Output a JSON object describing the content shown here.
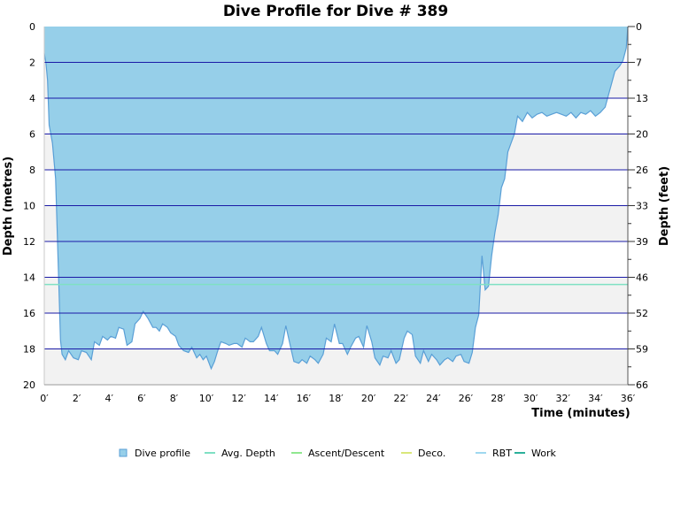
{
  "chart_data": {
    "type": "area",
    "title": "Dive Profile for Dive # 389",
    "xlabel": "Time (minutes)",
    "ylabel": "Depth (metres)",
    "ylabel_right": "Depth (feet)",
    "xlim": [
      0,
      36
    ],
    "ylim": [
      0,
      20
    ],
    "y_inverted": true,
    "x_ticks": [
      "0′",
      "2′",
      "4′",
      "6′",
      "8′",
      "10′",
      "12′",
      "14′",
      "16′",
      "18′",
      "20′",
      "22′",
      "24′",
      "26′",
      "28′",
      "30′",
      "32′",
      "34′",
      "36′"
    ],
    "y_ticks": [
      "0",
      "2",
      "4",
      "6",
      "8",
      "10",
      "12",
      "14",
      "16",
      "18",
      "20"
    ],
    "y_right_ticks": [
      "0",
      "7",
      "13",
      "20",
      "26",
      "33",
      "39",
      "46",
      "52",
      "59",
      "66"
    ],
    "grid": "horizontal",
    "legend_placement": "bottom",
    "colors": {
      "area_fill": "#96cfe9",
      "area_stroke": "#5a9fd6",
      "grid": "#1a1aa6",
      "band": "#f2f2f2",
      "avg_depth": "#7fe0c3"
    },
    "avg_depth": 14.4,
    "series": [
      {
        "name": "Dive profile",
        "x": [
          0,
          0.1,
          0.2,
          0.3,
          0.5,
          0.7,
          0.9,
          1.0,
          1.1,
          1.3,
          1.5,
          1.8,
          2.1,
          2.3,
          2.6,
          2.9,
          3.1,
          3.4,
          3.6,
          3.9,
          4.1,
          4.4,
          4.6,
          4.9,
          5.1,
          5.4,
          5.6,
          5.9,
          6.1,
          6.4,
          6.7,
          6.9,
          7.1,
          7.3,
          7.6,
          7.8,
          8.1,
          8.3,
          8.6,
          8.9,
          9.1,
          9.4,
          9.6,
          9.8,
          10.0,
          10.3,
          10.5,
          10.7,
          10.9,
          11.2,
          11.4,
          11.7,
          11.9,
          12.2,
          12.4,
          12.7,
          12.9,
          13.2,
          13.4,
          13.7,
          13.9,
          14.2,
          14.4,
          14.7,
          14.9,
          15.2,
          15.4,
          15.7,
          15.9,
          16.2,
          16.4,
          16.7,
          16.9,
          17.2,
          17.4,
          17.7,
          17.9,
          18.2,
          18.4,
          18.7,
          18.9,
          19.2,
          19.4,
          19.7,
          19.9,
          20.2,
          20.4,
          20.7,
          20.9,
          21.2,
          21.4,
          21.7,
          21.9,
          22.2,
          22.4,
          22.7,
          22.9,
          23.2,
          23.4,
          23.7,
          23.9,
          24.2,
          24.4,
          24.7,
          24.9,
          25.2,
          25.4,
          25.7,
          25.9,
          26.2,
          26.4,
          26.6,
          26.8,
          27.0,
          27.2,
          27.4,
          27.6,
          27.8,
          28.0,
          28.2,
          28.4,
          28.6,
          28.8,
          29.0,
          29.2,
          29.5,
          29.8,
          30.1,
          30.4,
          30.7,
          31.0,
          31.3,
          31.6,
          31.9,
          32.2,
          32.5,
          32.8,
          33.1,
          33.4,
          33.7,
          34.0,
          34.3,
          34.6,
          34.9,
          35.2,
          35.5,
          35.7,
          35.9,
          36.0
        ],
        "depth": [
          1.5,
          2.0,
          3.0,
          5.5,
          6.5,
          8.5,
          14.5,
          17.5,
          18.3,
          18.6,
          18.1,
          18.5,
          18.6,
          18.1,
          18.2,
          18.6,
          17.6,
          17.8,
          17.3,
          17.5,
          17.3,
          17.4,
          16.8,
          16.9,
          17.8,
          17.6,
          16.6,
          16.3,
          15.9,
          16.3,
          16.8,
          16.8,
          17.0,
          16.6,
          16.8,
          17.1,
          17.3,
          17.8,
          18.1,
          18.2,
          17.9,
          18.5,
          18.3,
          18.6,
          18.4,
          19.1,
          18.7,
          18.1,
          17.6,
          17.7,
          17.8,
          17.7,
          17.7,
          17.9,
          17.4,
          17.6,
          17.6,
          17.3,
          16.8,
          17.7,
          18.1,
          18.1,
          18.3,
          17.7,
          16.7,
          17.9,
          18.7,
          18.8,
          18.6,
          18.8,
          18.4,
          18.6,
          18.8,
          18.3,
          17.4,
          17.6,
          16.6,
          17.7,
          17.7,
          18.3,
          17.9,
          17.4,
          17.3,
          17.9,
          16.7,
          17.6,
          18.5,
          18.9,
          18.4,
          18.5,
          18.1,
          18.8,
          18.6,
          17.4,
          17.0,
          17.2,
          18.4,
          18.8,
          18.1,
          18.7,
          18.3,
          18.6,
          18.9,
          18.6,
          18.5,
          18.7,
          18.4,
          18.3,
          18.7,
          18.8,
          18.2,
          16.8,
          16.1,
          12.8,
          14.7,
          14.5,
          12.8,
          11.5,
          10.5,
          9.0,
          8.5,
          7.0,
          6.5,
          6.0,
          5.0,
          5.3,
          4.8,
          5.1,
          4.9,
          4.8,
          5.0,
          4.9,
          4.8,
          4.9,
          5.0,
          4.8,
          5.1,
          4.8,
          4.9,
          4.7,
          5.0,
          4.8,
          4.5,
          3.5,
          2.5,
          2.2,
          1.9,
          1.2,
          0.0
        ]
      }
    ],
    "legend": [
      {
        "label": "Dive profile",
        "swatch": "box",
        "color": "#96cfe9"
      },
      {
        "label": "Avg. Depth",
        "swatch": "line",
        "color": "#7fe0c3"
      },
      {
        "label": "Ascent/Descent",
        "swatch": "line",
        "color": "#90e890"
      },
      {
        "label": "Deco.",
        "swatch": "line",
        "color": "#d9e77a"
      },
      {
        "label": "RBT",
        "swatch": "line",
        "color": "#9fd8ef"
      },
      {
        "label": "Work",
        "swatch": "line",
        "color": "#2bb09a"
      }
    ]
  }
}
